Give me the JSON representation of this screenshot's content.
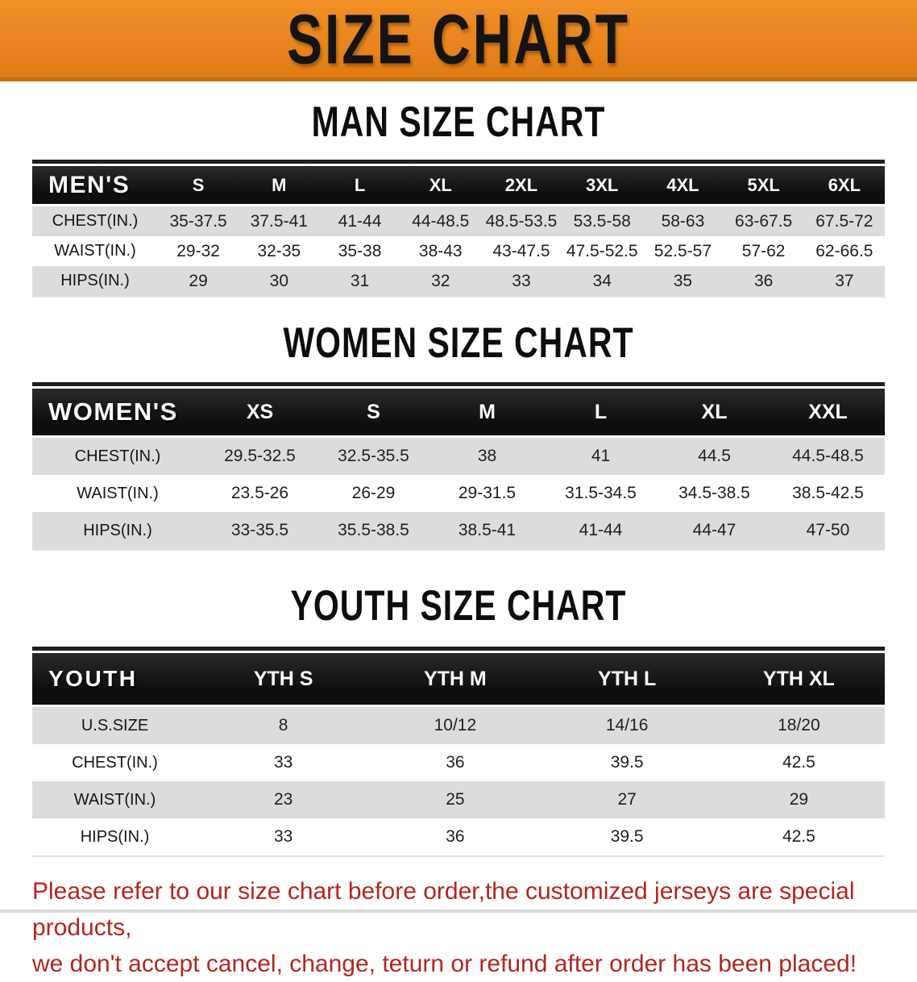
{
  "banner": {
    "title": "SIZE CHART",
    "bg_color": "#E8851F",
    "edge_color": "#C8700F",
    "text_color": "#141414"
  },
  "sections": [
    {
      "key": "men",
      "heading": "MAN SIZE CHART",
      "table": {
        "header_label": "MEN'S",
        "columns": [
          "S",
          "M",
          "L",
          "XL",
          "2XL",
          "3XL",
          "4XL",
          "5XL",
          "6XL"
        ],
        "rows": [
          {
            "label": "CHEST(IN.)",
            "values": [
              "35-37.5",
              "37.5-41",
              "41-44",
              "44-48.5",
              "48.5-53.5",
              "53.5-58",
              "58-63",
              "63-67.5",
              "67.5-72"
            ]
          },
          {
            "label": "WAIST(IN.)",
            "values": [
              "29-32",
              "32-35",
              "35-38",
              "38-43",
              "43-47.5",
              "47.5-52.5",
              "52.5-57",
              "57-62",
              "62-66.5"
            ]
          },
          {
            "label": "HIPS(IN.)",
            "values": [
              "29",
              "30",
              "31",
              "32",
              "33",
              "34",
              "35",
              "36",
              "37"
            ]
          }
        ]
      }
    },
    {
      "key": "women",
      "heading": "WOMEN SIZE CHART",
      "table": {
        "header_label": "WOMEN'S",
        "columns": [
          "XS",
          "S",
          "M",
          "L",
          "XL",
          "XXL"
        ],
        "rows": [
          {
            "label": "CHEST(IN.)",
            "values": [
              "29.5-32.5",
              "32.5-35.5",
              "38",
              "41",
              "44.5",
              "44.5-48.5"
            ]
          },
          {
            "label": "WAIST(IN.)",
            "values": [
              "23.5-26",
              "26-29",
              "29-31.5",
              "31.5-34.5",
              "34.5-38.5",
              "38.5-42.5"
            ]
          },
          {
            "label": "HIPS(IN.)",
            "values": [
              "33-35.5",
              "35.5-38.5",
              "38.5-41",
              "41-44",
              "44-47",
              "47-50"
            ]
          }
        ]
      }
    },
    {
      "key": "youth",
      "heading": "YOUTH SIZE CHART",
      "table": {
        "header_label": "YOUTH",
        "columns": [
          "YTH S",
          "YTH M",
          "YTH L",
          "YTH XL"
        ],
        "rows": [
          {
            "label": "U.S.SIZE",
            "values": [
              "8",
              "10/12",
              "14/16",
              "18/20"
            ]
          },
          {
            "label": "CHEST(IN.)",
            "values": [
              "33",
              "36",
              "39.5",
              "42.5"
            ]
          },
          {
            "label": "WAIST(IN.)",
            "values": [
              "23",
              "25",
              "27",
              "29"
            ]
          },
          {
            "label": "HIPS(IN.)",
            "values": [
              "33",
              "36",
              "39.5",
              "42.5"
            ]
          }
        ]
      }
    }
  ],
  "disclaimer": {
    "line1": "Please refer to our size chart before order,the customized jerseys are special products,",
    "line2": "we don't accept cancel, change, teturn or refund after order has been placed!",
    "color": "#B3261E"
  },
  "colors": {
    "table_header_bg": "#151515",
    "table_header_text": "#FFFFFF",
    "row_alt_bg": "#DCDCDC",
    "row_bg": "#FFFFFF",
    "body_text": "#1F1F1F"
  }
}
